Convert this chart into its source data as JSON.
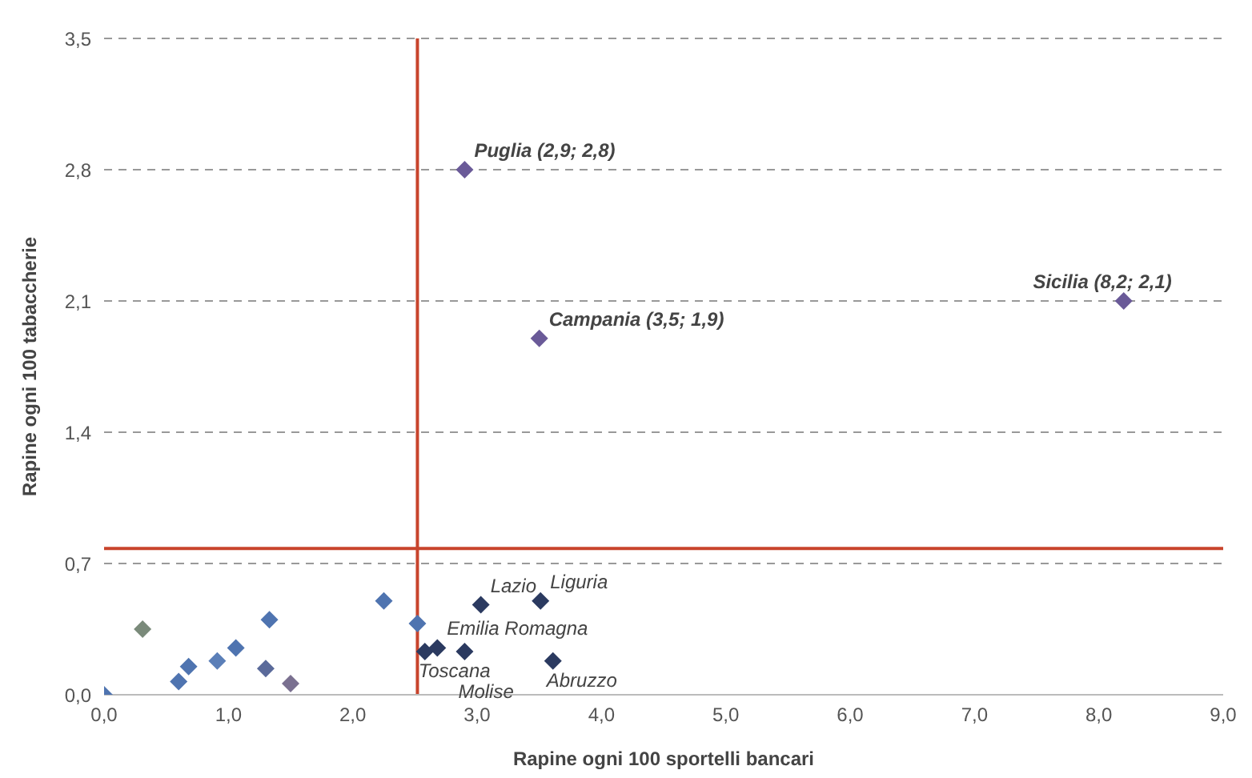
{
  "chart_data": {
    "type": "scatter",
    "xlabel": "Rapine ogni 100 sportelli bancari",
    "ylabel": "Rapine ogni 100 tabaccherie",
    "x": [
      0,
      0.6,
      0.68,
      0.91,
      1.06,
      0.31,
      1.33,
      1.3,
      1.5,
      2.25,
      2.52,
      2.58,
      2.68,
      2.9,
      3.03,
      3.51,
      3.61,
      2.9,
      3.5,
      8.2
    ],
    "series": [
      {
        "colors": [
          "#4f74b0",
          "#4f74b0",
          "#4f74b0",
          "#5b7fb8",
          "#4f74b0",
          "#7a8a7a",
          "#4f74b0",
          "#5a6a9a",
          "#7a7090",
          "#4f74b0",
          "#4f74b0",
          "#2b3a60",
          "#2b3a60",
          "#2b3a60",
          "#2b3a60",
          "#2b3a60",
          "#2b3a60",
          "#6a5a98",
          "#6a5a98",
          "#6a5a98"
        ],
        "values": [
          0,
          0.07,
          0.15,
          0.18,
          0.25,
          0.35,
          0.4,
          0.14,
          0.06,
          0.5,
          0.38,
          0.23,
          0.25,
          0.23,
          0.48,
          0.5,
          0.18,
          2.8,
          1.9,
          2.1
        ]
      }
    ],
    "xlim": [
      0,
      9
    ],
    "xticks": [
      {
        "value": 0,
        "label": "0,0"
      },
      {
        "value": 1,
        "label": "1,0"
      },
      {
        "value": 2,
        "label": "2,0"
      },
      {
        "value": 3,
        "label": "3,0"
      },
      {
        "value": 4,
        "label": "4,0"
      },
      {
        "value": 5,
        "label": "5,0"
      },
      {
        "value": 6,
        "label": "6,0"
      },
      {
        "value": 7,
        "label": "7,0"
      },
      {
        "value": 8,
        "label": "8,0"
      },
      {
        "value": 9,
        "label": "9,0"
      }
    ],
    "ylim": [
      0,
      3.5
    ],
    "yticks": [
      {
        "value": 0,
        "label": "0,0"
      },
      {
        "value": 0.7,
        "label": "0,7"
      },
      {
        "value": 1.4,
        "label": "1,4"
      },
      {
        "value": 2.1,
        "label": "2,1"
      },
      {
        "value": 2.8,
        "label": "2,8"
      },
      {
        "value": 3.5,
        "label": "3,5"
      }
    ],
    "grid": "y",
    "marker": "diamond",
    "ref_lines": [
      {
        "axis": "x",
        "value": 2.52,
        "color": "#c8442c"
      },
      {
        "axis": "y",
        "value": 0.78,
        "color": "#c8442c"
      }
    ],
    "annotations": [
      {
        "text": "Puglia (2,9; 2,8)",
        "x": 2.9,
        "y": 2.8
      },
      {
        "text": "Campania (3,5; 1,9)",
        "x": 3.5,
        "y": 1.9
      },
      {
        "text": "Sicilia (8,2; 2,1)",
        "x": 8.2,
        "y": 2.1
      },
      {
        "text": "Lazio",
        "x": 3.03,
        "y": 0.48
      },
      {
        "text": "Liguria",
        "x": 3.51,
        "y": 0.5
      },
      {
        "text": "Emilia Romagna",
        "x": 2.68,
        "y": 0.25
      },
      {
        "text": "Molise",
        "x": 2.9,
        "y": 0.23
      },
      {
        "text": "Abruzzo",
        "x": 3.61,
        "y": 0.18
      },
      {
        "text": "Toscana",
        "x": 2.58,
        "y": 0.23
      }
    ]
  }
}
